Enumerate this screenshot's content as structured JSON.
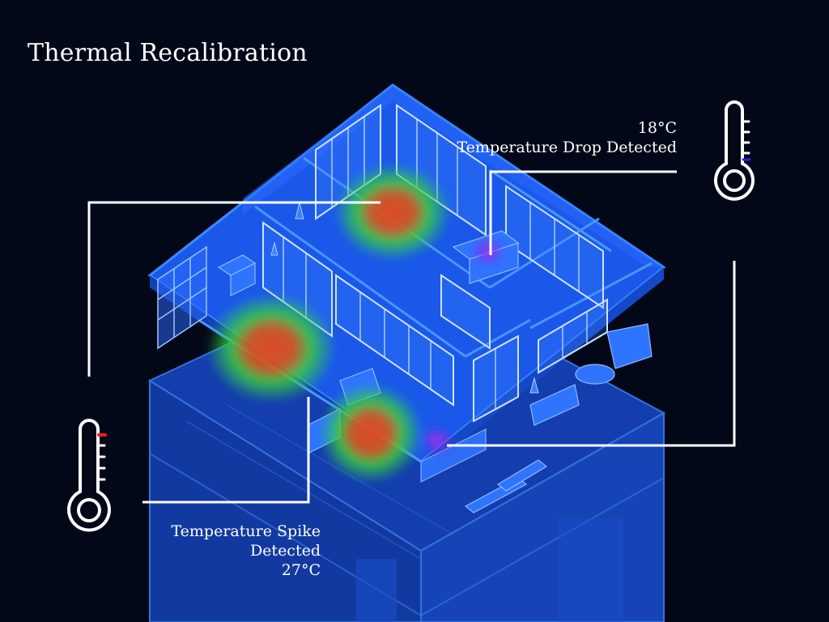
{
  "page": {
    "title": "Thermal Recalibration"
  },
  "colors": {
    "background": "#030819",
    "floor_blue": "#1a56e8",
    "wall_blue": "#2f7dff",
    "heat_hot": "#e0481f",
    "heat_warm": "#3ad43a",
    "heat_cold": "#9b2fe0",
    "indicator_hot": "#ff1a1a",
    "indicator_cold": "#1a1aff",
    "line": "#ffffff"
  },
  "alerts": {
    "drop": {
      "temperature": "18°C",
      "label": "Temperature Drop Detected",
      "icon": "thermometer-icon",
      "level": "low"
    },
    "spike": {
      "temperature": "27°C",
      "label": "Temperature Spike Detected",
      "icon": "thermometer-icon",
      "level": "high"
    }
  }
}
